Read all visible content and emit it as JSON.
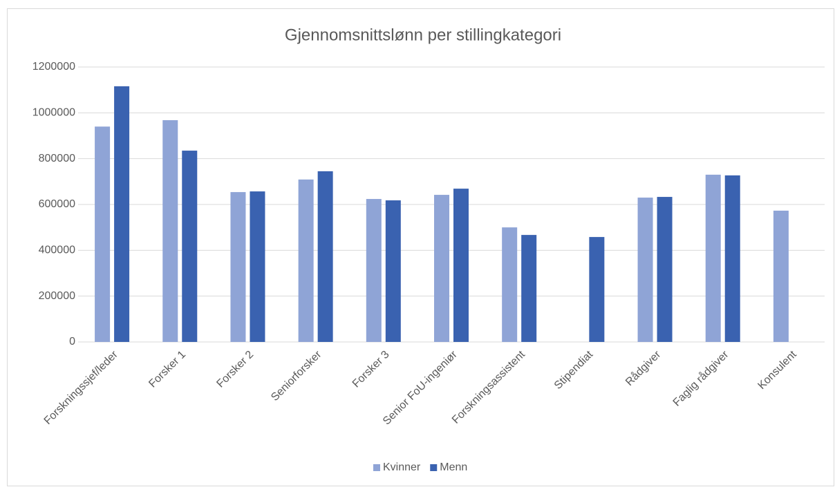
{
  "chart_data": {
    "type": "bar",
    "title": "Gjennomsnittslønn per stillingkategori",
    "categories": [
      "Forskningssjef/leder",
      "Forsker 1",
      "Forsker 2",
      "Seniorforsker",
      "Forsker 3",
      "Senior FoU-ingeniør",
      "Forskningsassistent",
      "Stipendiat",
      "Rådgiver",
      "Faglig rådgiver",
      "Konsulent"
    ],
    "series": [
      {
        "name": "Kvinner",
        "color": "#8fa4d6",
        "values": [
          940000,
          968000,
          654000,
          709000,
          624000,
          642000,
          500000,
          null,
          630000,
          730000,
          573000
        ]
      },
      {
        "name": "Menn",
        "color": "#3a62b0",
        "values": [
          1116000,
          835000,
          657000,
          745000,
          618000,
          669000,
          467000,
          458000,
          633000,
          727000,
          null
        ]
      }
    ],
    "ylim": [
      0,
      1200000
    ],
    "yticks": [
      0,
      200000,
      400000,
      600000,
      800000,
      1000000,
      1200000
    ],
    "grid": true,
    "legend": "bottom"
  }
}
